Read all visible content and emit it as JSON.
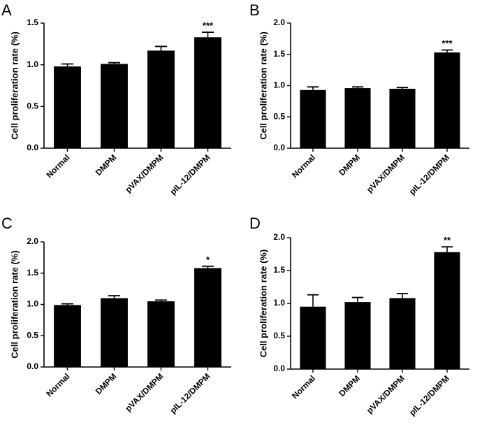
{
  "chart_data": [
    {
      "type": "bar",
      "panel": "A",
      "categories": [
        "Normal",
        "DMPM",
        "pVAX/DMPM",
        "pIL-12/DMPM"
      ],
      "values": [
        0.98,
        1.01,
        1.17,
        1.33
      ],
      "errors": [
        0.03,
        0.015,
        0.05,
        0.06
      ],
      "significance": [
        "",
        "",
        "",
        "***"
      ],
      "ylabel": "Cell proliferation rate (%)",
      "ylim": [
        0,
        1.5
      ],
      "yticks": [
        "0.0",
        "0.5",
        "1.0",
        "1.5"
      ]
    },
    {
      "type": "bar",
      "panel": "B",
      "categories": [
        "Normal",
        "DMPM",
        "pVAX/DMPM",
        "pIL-12/DMPM"
      ],
      "values": [
        0.93,
        0.96,
        0.95,
        1.53
      ],
      "errors": [
        0.05,
        0.02,
        0.02,
        0.04
      ],
      "significance": [
        "",
        "",
        "",
        "***"
      ],
      "ylabel": "Cell proliferation rate (%)",
      "ylim": [
        0,
        2.0
      ],
      "yticks": [
        "0.0",
        "0.5",
        "1.0",
        "1.5",
        "2.0"
      ]
    },
    {
      "type": "bar",
      "panel": "C",
      "categories": [
        "Normal",
        "DMPM",
        "pVAX/DMPM",
        "pIL-12/DMPM"
      ],
      "values": [
        0.99,
        1.1,
        1.05,
        1.58
      ],
      "errors": [
        0.02,
        0.04,
        0.02,
        0.03
      ],
      "significance": [
        "",
        "",
        "",
        "*"
      ],
      "ylabel": "Cell proliferation rate (%)",
      "ylim": [
        0,
        2.0
      ],
      "yticks": [
        "0.0",
        "0.5",
        "1.0",
        "1.5",
        "2.0"
      ]
    },
    {
      "type": "bar",
      "panel": "D",
      "categories": [
        "Normal",
        "DMPM",
        "pVAX/DMPM",
        "pIL-12/DMPM"
      ],
      "values": [
        0.95,
        1.02,
        1.08,
        1.78
      ],
      "errors": [
        0.18,
        0.07,
        0.07,
        0.08
      ],
      "significance": [
        "",
        "",
        "",
        "**"
      ],
      "ylabel": "Cell proliferation rate (%)",
      "ylim": [
        0,
        2.0
      ],
      "yticks": [
        "0.0",
        "0.5",
        "1.0",
        "1.5",
        "2.0"
      ]
    }
  ],
  "colors": {
    "bar": "#000000",
    "axis": "#000000"
  }
}
